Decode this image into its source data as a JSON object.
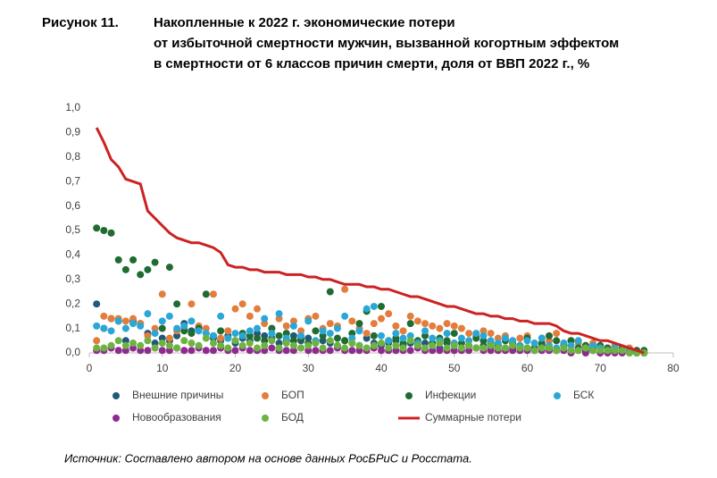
{
  "chart_data": {
    "type": "scatter",
    "figure_label": "Рисунок 11.",
    "title_lines": [
      "Накопленные к 2022 г. экономические потери",
      "от избыточной смертности мужчин, вызванной когортным эффектом",
      "в смертности от 6 классов причин смерти, доля от ВВП 2022 г., %"
    ],
    "source": "Источник: Составлено автором на основе данных РосБРиС и Росстата.",
    "xlim": [
      0,
      80
    ],
    "xticks": [
      0,
      10,
      20,
      30,
      40,
      50,
      60,
      70,
      80
    ],
    "ylim": [
      0,
      1
    ],
    "yticks": [
      {
        "value": 0,
        "label": "0,0"
      },
      {
        "value": 0.1,
        "label": "0,1"
      },
      {
        "value": 0.2,
        "label": "0,2"
      },
      {
        "value": 0.3,
        "label": "0,3"
      },
      {
        "value": 0.4,
        "label": "0,4"
      },
      {
        "value": 0.5,
        "label": "0,5"
      },
      {
        "value": 0.6,
        "label": "0,6"
      },
      {
        "value": 0.7,
        "label": "0,7"
      },
      {
        "value": 0.8,
        "label": "0,8"
      },
      {
        "value": 0.9,
        "label": "0,9"
      },
      {
        "value": 1,
        "label": "1,0"
      }
    ],
    "x": [
      1,
      2,
      3,
      4,
      5,
      6,
      7,
      8,
      9,
      10,
      11,
      12,
      13,
      14,
      15,
      16,
      17,
      18,
      19,
      20,
      21,
      22,
      23,
      24,
      25,
      26,
      27,
      28,
      29,
      30,
      31,
      32,
      33,
      34,
      35,
      36,
      37,
      38,
      39,
      40,
      41,
      42,
      43,
      44,
      45,
      46,
      47,
      48,
      49,
      50,
      51,
      52,
      53,
      54,
      55,
      56,
      57,
      58,
      59,
      60,
      61,
      62,
      63,
      64,
      65,
      66,
      67,
      68,
      69,
      70,
      71,
      72,
      73,
      74,
      75,
      76
    ],
    "series": [
      {
        "name": "Внешние причины",
        "type": "scatter",
        "color": "#22587a",
        "values": [
          0.2,
          0.1,
          0.14,
          0.13,
          0.05,
          0.13,
          0.12,
          0.08,
          0.04,
          0.06,
          0.05,
          0.07,
          0.12,
          0.09,
          0.1,
          0.08,
          0.06,
          0.05,
          0.07,
          0.04,
          0.06,
          0.05,
          0.08,
          0.07,
          0.06,
          0.04,
          0.05,
          0.07,
          0.05,
          0.06,
          0.04,
          0.05,
          0.04,
          0.03,
          0.05,
          0.04,
          0.03,
          0.06,
          0.04,
          0.03,
          0.04,
          0.05,
          0.03,
          0.04,
          0.03,
          0.04,
          0.03,
          0.02,
          0.04,
          0.03,
          0.02,
          0.03,
          0.02,
          0.03,
          0.02,
          0.03,
          0.02,
          0.02,
          0.03,
          0.02,
          0.02,
          0.03,
          0.02,
          0.01,
          0.02,
          0.01,
          0.02,
          0.01,
          0.01,
          0.02,
          0.01,
          0.01,
          0.01,
          0.01,
          0,
          0
        ]
      },
      {
        "name": "БОП",
        "type": "scatter",
        "color": "#e27d3c",
        "values": [
          0.05,
          0.15,
          0.14,
          0.14,
          0.13,
          0.14,
          0.12,
          0.07,
          0.1,
          0.24,
          0.06,
          0.09,
          0.1,
          0.2,
          0.11,
          0.1,
          0.24,
          0.06,
          0.09,
          0.18,
          0.2,
          0.15,
          0.18,
          0.12,
          0.1,
          0.14,
          0.11,
          0.13,
          0.09,
          0.14,
          0.15,
          0.1,
          0.12,
          0.11,
          0.26,
          0.13,
          0.1,
          0.08,
          0.12,
          0.14,
          0.16,
          0.11,
          0.09,
          0.15,
          0.13,
          0.12,
          0.11,
          0.1,
          0.12,
          0.11,
          0.1,
          0.08,
          0.07,
          0.09,
          0.08,
          0.06,
          0.07,
          0.05,
          0.06,
          0.07,
          0.04,
          0.06,
          0.05,
          0.08,
          0.04,
          0.05,
          0.04,
          0.03,
          0.04,
          0.03,
          0.02,
          0.03,
          0.02,
          0.02,
          0.01,
          0
        ]
      },
      {
        "name": "Инфекции",
        "type": "scatter",
        "color": "#1f6b30",
        "values": [
          0.51,
          0.5,
          0.49,
          0.38,
          0.34,
          0.38,
          0.32,
          0.34,
          0.37,
          0.1,
          0.35,
          0.2,
          0.09,
          0.08,
          0.1,
          0.24,
          0.07,
          0.09,
          0.06,
          0.05,
          0.08,
          0.07,
          0.06,
          0.05,
          0.1,
          0.07,
          0.08,
          0.05,
          0.06,
          0.04,
          0.09,
          0.07,
          0.25,
          0.06,
          0.05,
          0.08,
          0.12,
          0.17,
          0.07,
          0.19,
          0.05,
          0.06,
          0.04,
          0.12,
          0.05,
          0.07,
          0.04,
          0.06,
          0.05,
          0.08,
          0.04,
          0.03,
          0.06,
          0.05,
          0.04,
          0.03,
          0.05,
          0.04,
          0.03,
          0.06,
          0.02,
          0.04,
          0.07,
          0.05,
          0.03,
          0.05,
          0.02,
          0.03,
          0.02,
          0.03,
          0.02,
          0.01,
          0.02,
          0.01,
          0.01,
          0.01
        ]
      },
      {
        "name": "БСК",
        "type": "scatter",
        "color": "#2aa7d6",
        "values": [
          0.11,
          0.1,
          0.09,
          0.13,
          0.1,
          0.12,
          0.11,
          0.16,
          0.08,
          0.13,
          0.15,
          0.1,
          0.11,
          0.13,
          0.09,
          0.08,
          0.07,
          0.15,
          0.06,
          0.08,
          0.07,
          0.09,
          0.1,
          0.14,
          0.08,
          0.16,
          0.06,
          0.11,
          0.07,
          0.13,
          0.05,
          0.09,
          0.08,
          0.1,
          0.15,
          0.06,
          0.09,
          0.18,
          0.19,
          0.07,
          0.05,
          0.08,
          0.06,
          0.07,
          0.04,
          0.09,
          0.06,
          0.05,
          0.08,
          0.04,
          0.06,
          0.05,
          0.08,
          0.07,
          0.05,
          0.04,
          0.06,
          0.05,
          0.03,
          0.05,
          0.04,
          0.06,
          0.03,
          0.02,
          0.04,
          0.03,
          0.05,
          0.02,
          0.03,
          0.02,
          0.01,
          0.02,
          0.01,
          0.01,
          0,
          0
        ]
      },
      {
        "name": "Новообразования",
        "type": "scatter",
        "color": "#8e2b8e",
        "values": [
          0.01,
          0.01,
          0.02,
          0.01,
          0.01,
          0.02,
          0.01,
          0.01,
          0.02,
          0.01,
          0.01,
          0.02,
          0.01,
          0.01,
          0.02,
          0.01,
          0.01,
          0.02,
          0.01,
          0.01,
          0.02,
          0.01,
          0.01,
          0.01,
          0.02,
          0.01,
          0.01,
          0.01,
          0.02,
          0.01,
          0.01,
          0.01,
          0.01,
          0.02,
          0.01,
          0.01,
          0.01,
          0.01,
          0.02,
          0.01,
          0.01,
          0.01,
          0.01,
          0.01,
          0.02,
          0.01,
          0.01,
          0.01,
          0.01,
          0.01,
          0.01,
          0.01,
          0.02,
          0.01,
          0.01,
          0.01,
          0.01,
          0.01,
          0.01,
          0.01,
          0.01,
          0.01,
          0.01,
          0.01,
          0.01,
          0,
          0.01,
          0,
          0.01,
          0,
          0,
          0,
          0,
          0,
          0,
          0
        ]
      },
      {
        "name": "БОД",
        "type": "scatter",
        "color": "#6cb33f",
        "values": [
          0.02,
          0.02,
          0.03,
          0.05,
          0.03,
          0.04,
          0.03,
          0.05,
          0.02,
          0.04,
          0.03,
          0.02,
          0.05,
          0.04,
          0.03,
          0.06,
          0.04,
          0.03,
          0.02,
          0.05,
          0.03,
          0.04,
          0.02,
          0.03,
          0.05,
          0.02,
          0.04,
          0.03,
          0.02,
          0.03,
          0.04,
          0.02,
          0.05,
          0.03,
          0.02,
          0.04,
          0.03,
          0.02,
          0.03,
          0.04,
          0.02,
          0.03,
          0.02,
          0.05,
          0.03,
          0.02,
          0.03,
          0.04,
          0.02,
          0.03,
          0.02,
          0.03,
          0.02,
          0.02,
          0.03,
          0.02,
          0.02,
          0.03,
          0.02,
          0.02,
          0.01,
          0.02,
          0.02,
          0.01,
          0.02,
          0.01,
          0.01,
          0.02,
          0.01,
          0.01,
          0.01,
          0.01,
          0.01,
          0,
          0,
          0
        ]
      },
      {
        "name": "Суммарные потери",
        "type": "line",
        "color": "#cc2222",
        "values": [
          0.92,
          0.86,
          0.79,
          0.76,
          0.71,
          0.7,
          0.69,
          0.58,
          0.55,
          0.52,
          0.49,
          0.47,
          0.46,
          0.45,
          0.45,
          0.44,
          0.43,
          0.41,
          0.36,
          0.35,
          0.35,
          0.34,
          0.34,
          0.33,
          0.33,
          0.33,
          0.32,
          0.32,
          0.32,
          0.31,
          0.31,
          0.3,
          0.3,
          0.29,
          0.28,
          0.28,
          0.28,
          0.27,
          0.27,
          0.26,
          0.26,
          0.25,
          0.24,
          0.23,
          0.23,
          0.22,
          0.21,
          0.2,
          0.19,
          0.19,
          0.18,
          0.17,
          0.16,
          0.16,
          0.15,
          0.15,
          0.14,
          0.14,
          0.13,
          0.13,
          0.12,
          0.12,
          0.12,
          0.11,
          0.09,
          0.08,
          0.08,
          0.07,
          0.06,
          0.05,
          0.05,
          0.04,
          0.03,
          0.02,
          0.01,
          0
        ]
      }
    ]
  }
}
